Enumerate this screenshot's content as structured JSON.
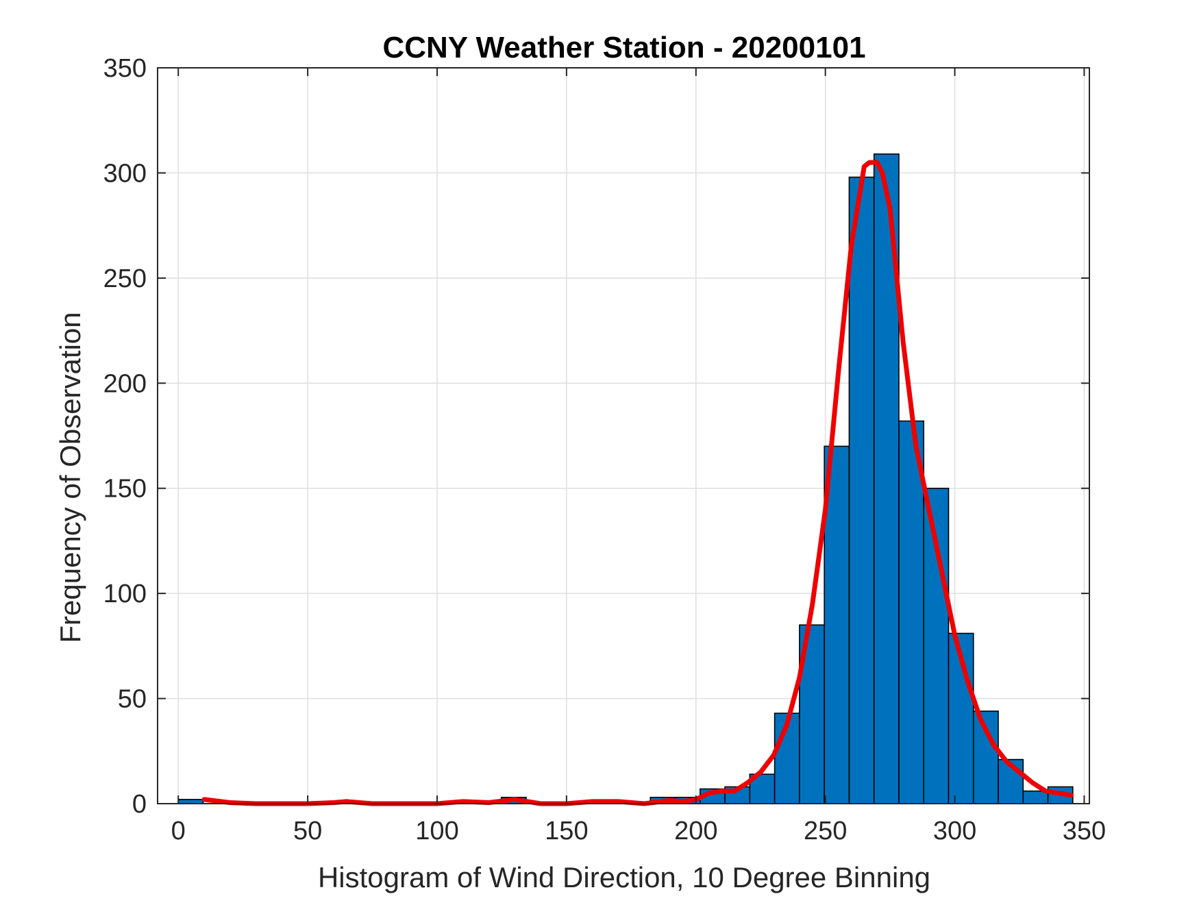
{
  "chart_data": {
    "type": "bar",
    "title": "CCNY Weather Station - 20200101",
    "xlabel": "Histogram of Wind Direction, 10 Degree Binning",
    "ylabel": "Frequency of Observation",
    "xlim": [
      -8,
      352
    ],
    "ylim": [
      0,
      350
    ],
    "xticks": [
      0,
      50,
      100,
      150,
      200,
      250,
      300,
      350
    ],
    "yticks": [
      0,
      50,
      100,
      150,
      200,
      250,
      300,
      350
    ],
    "grid": true,
    "bin_width": 9.6,
    "bins": [
      {
        "left": 0.0,
        "value": 2
      },
      {
        "left": 9.6,
        "value": 0
      },
      {
        "left": 19.2,
        "value": 0
      },
      {
        "left": 28.8,
        "value": 0
      },
      {
        "left": 38.4,
        "value": 0
      },
      {
        "left": 48.0,
        "value": 0
      },
      {
        "left": 57.6,
        "value": 0
      },
      {
        "left": 67.2,
        "value": 0
      },
      {
        "left": 76.8,
        "value": 0
      },
      {
        "left": 86.4,
        "value": 0
      },
      {
        "left": 96.0,
        "value": 0
      },
      {
        "left": 105.6,
        "value": 0
      },
      {
        "left": 115.2,
        "value": 0
      },
      {
        "left": 124.8,
        "value": 3
      },
      {
        "left": 134.4,
        "value": 0
      },
      {
        "left": 144.0,
        "value": 0
      },
      {
        "left": 153.6,
        "value": 0
      },
      {
        "left": 163.2,
        "value": 0
      },
      {
        "left": 172.8,
        "value": 0
      },
      {
        "left": 182.4,
        "value": 3
      },
      {
        "left": 192.0,
        "value": 3
      },
      {
        "left": 201.6,
        "value": 7
      },
      {
        "left": 211.2,
        "value": 8
      },
      {
        "left": 220.8,
        "value": 14
      },
      {
        "left": 230.4,
        "value": 43
      },
      {
        "left": 240.0,
        "value": 85
      },
      {
        "left": 249.6,
        "value": 170
      },
      {
        "left": 259.2,
        "value": 298
      },
      {
        "left": 268.8,
        "value": 309
      },
      {
        "left": 278.4,
        "value": 182
      },
      {
        "left": 288.0,
        "value": 150
      },
      {
        "left": 297.6,
        "value": 81
      },
      {
        "left": 307.2,
        "value": 44
      },
      {
        "left": 316.8,
        "value": 21
      },
      {
        "left": 326.4,
        "value": 6
      },
      {
        "left": 336.0,
        "value": 8
      }
    ],
    "fit_curve": {
      "x": [
        10,
        20,
        30,
        40,
        50,
        60,
        65,
        75,
        90,
        100,
        110,
        120,
        130,
        140,
        150,
        160,
        170,
        180,
        190,
        195,
        200,
        205,
        210,
        215,
        220,
        225,
        230,
        235,
        240,
        245,
        250,
        255,
        260,
        265,
        267,
        270,
        272,
        275,
        280,
        285,
        290,
        295,
        300,
        305,
        310,
        315,
        320,
        325,
        330,
        335,
        340,
        345
      ],
      "y": [
        2,
        0.5,
        0,
        0,
        0,
        0.5,
        1,
        0,
        0,
        0,
        1,
        0.5,
        2,
        0,
        0,
        1,
        1,
        0,
        1.5,
        1,
        2,
        5,
        6,
        6,
        10,
        15,
        23,
        37,
        60,
        95,
        140,
        205,
        265,
        303,
        305,
        305,
        300,
        283,
        220,
        170,
        140,
        110,
        80,
        58,
        40,
        28,
        20,
        15,
        10,
        6,
        5,
        4
      ],
      "color": "#ee0000"
    },
    "bar_color": "#0072bd",
    "edge_color": "#000000"
  }
}
